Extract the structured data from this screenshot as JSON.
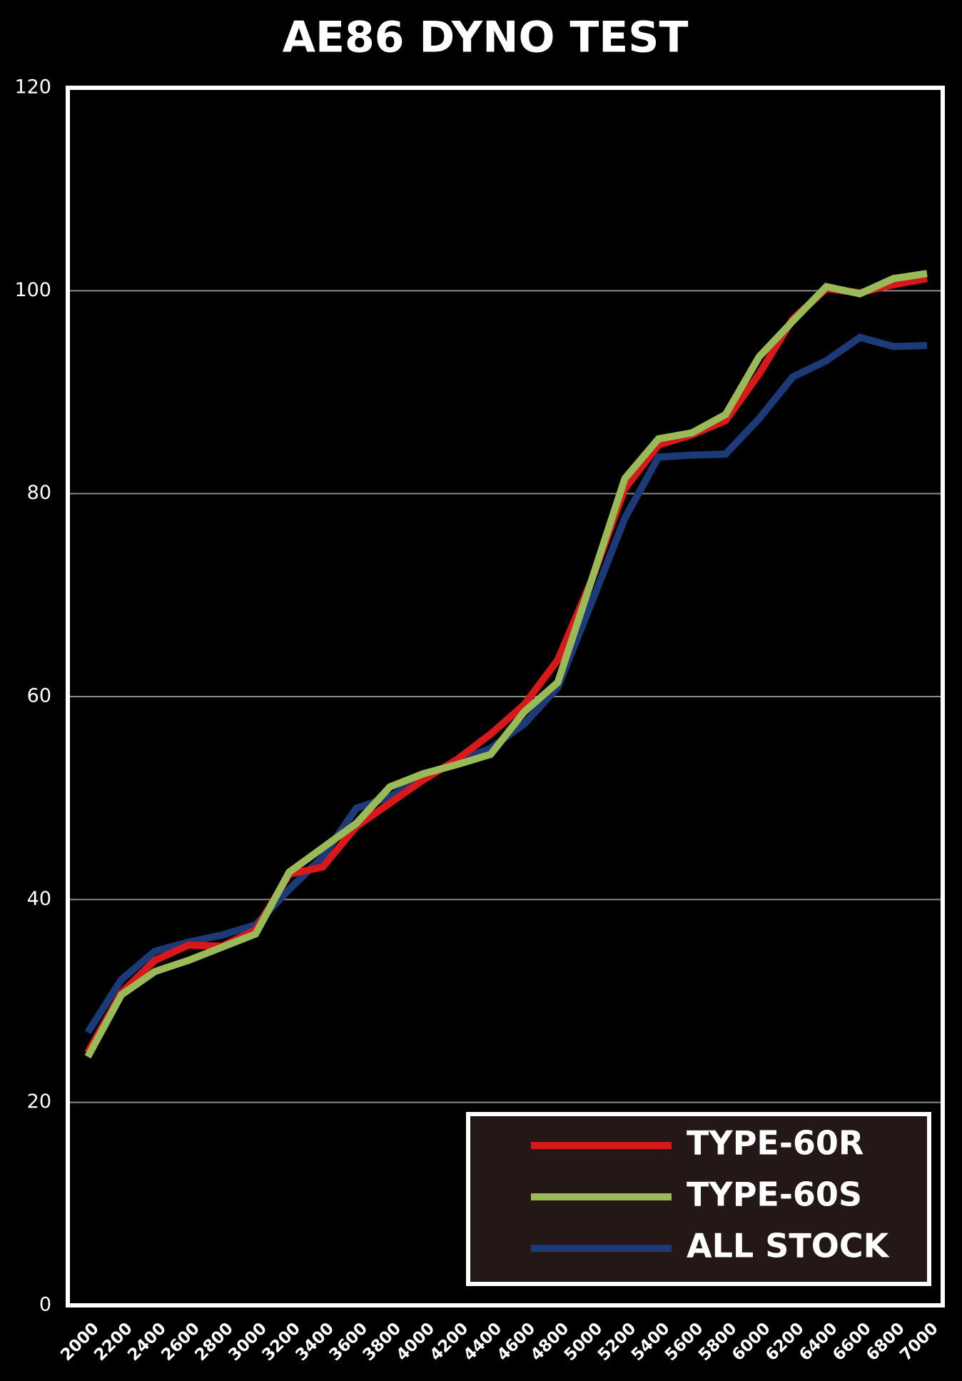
{
  "chart_data": {
    "type": "line",
    "title": "AE86 DYNO TEST",
    "categories": [
      "2000",
      "2200",
      "2400",
      "2600",
      "2800",
      "3000",
      "3200",
      "3400",
      "3600",
      "3800",
      "4000",
      "4200",
      "4400",
      "4600",
      "4800",
      "5000",
      "5200",
      "5400",
      "5600",
      "5800",
      "6000",
      "6200",
      "6400",
      "6600",
      "6800",
      "7000"
    ],
    "series": [
      {
        "name": "TYPE-60R",
        "color": "#d7191c",
        "values": [
          24.9,
          30.8,
          34.0,
          35.5,
          35.4,
          37.0,
          42.5,
          43.2,
          47.2,
          49.5,
          51.8,
          53.8,
          56.3,
          59.2,
          63.6,
          71.4,
          80.5,
          84.8,
          85.8,
          87.2,
          91.8,
          97.2,
          100.2,
          99.8,
          100.6,
          101.2
        ]
      },
      {
        "name": "TYPE-60S",
        "color": "#9aba58",
        "values": [
          24.5,
          30.6,
          32.9,
          34.0,
          35.3,
          36.6,
          42.7,
          45.1,
          47.5,
          51.1,
          52.4,
          53.3,
          54.3,
          58.5,
          61.4,
          71.4,
          81.5,
          85.4,
          86.0,
          87.8,
          93.5,
          97.0,
          100.4,
          99.7,
          101.2,
          101.7
        ]
      },
      {
        "name": "ALL STOCK",
        "color": "#1c3a78",
        "values": [
          26.9,
          32.1,
          34.9,
          35.8,
          36.5,
          37.5,
          41.0,
          44.2,
          49.0,
          50.1,
          52.1,
          53.6,
          54.9,
          57.3,
          60.9,
          69.2,
          77.6,
          83.6,
          83.8,
          83.9,
          87.4,
          91.5,
          93.1,
          95.4,
          94.5,
          94.6
        ]
      }
    ],
    "ylim": [
      0,
      120
    ],
    "yticks": [
      0,
      20,
      40,
      60,
      80,
      100,
      120
    ],
    "grid": true,
    "legend": "lower right"
  }
}
